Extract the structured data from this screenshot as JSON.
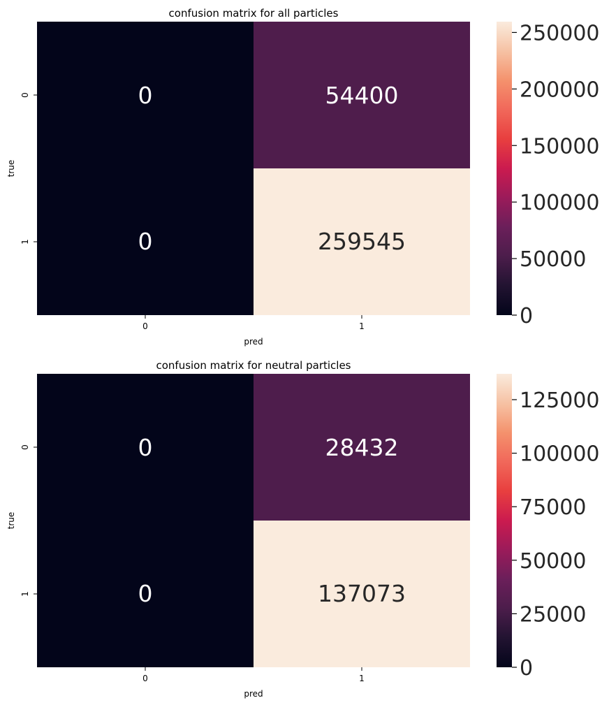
{
  "chart_data": [
    {
      "type": "heatmap",
      "title": "confusion matrix for all particles",
      "xlabel": "pred",
      "ylabel": "true",
      "x_categories": [
        "0",
        "1"
      ],
      "y_categories": [
        "0",
        "1"
      ],
      "values": [
        [
          0,
          54400
        ],
        [
          0,
          259545
        ]
      ],
      "colorbar": {
        "ticks": [
          0,
          50000,
          100000,
          150000,
          200000,
          250000
        ],
        "tick_labels": [
          "0",
          "50000",
          "100000",
          "150000",
          "200000",
          "250000"
        ],
        "range": [
          0,
          259545
        ]
      },
      "colormap": "rocket"
    },
    {
      "type": "heatmap",
      "title": "confusion matrix for neutral particles",
      "xlabel": "pred",
      "ylabel": "true",
      "x_categories": [
        "0",
        "1"
      ],
      "y_categories": [
        "0",
        "1"
      ],
      "values": [
        [
          0,
          28432
        ],
        [
          0,
          137073
        ]
      ],
      "colorbar": {
        "ticks": [
          0,
          25000,
          50000,
          75000,
          100000,
          125000
        ],
        "tick_labels": [
          "0",
          "25000",
          "50000",
          "75000",
          "100000",
          "125000"
        ],
        "range": [
          0,
          137073
        ]
      },
      "colormap": "rocket"
    }
  ]
}
